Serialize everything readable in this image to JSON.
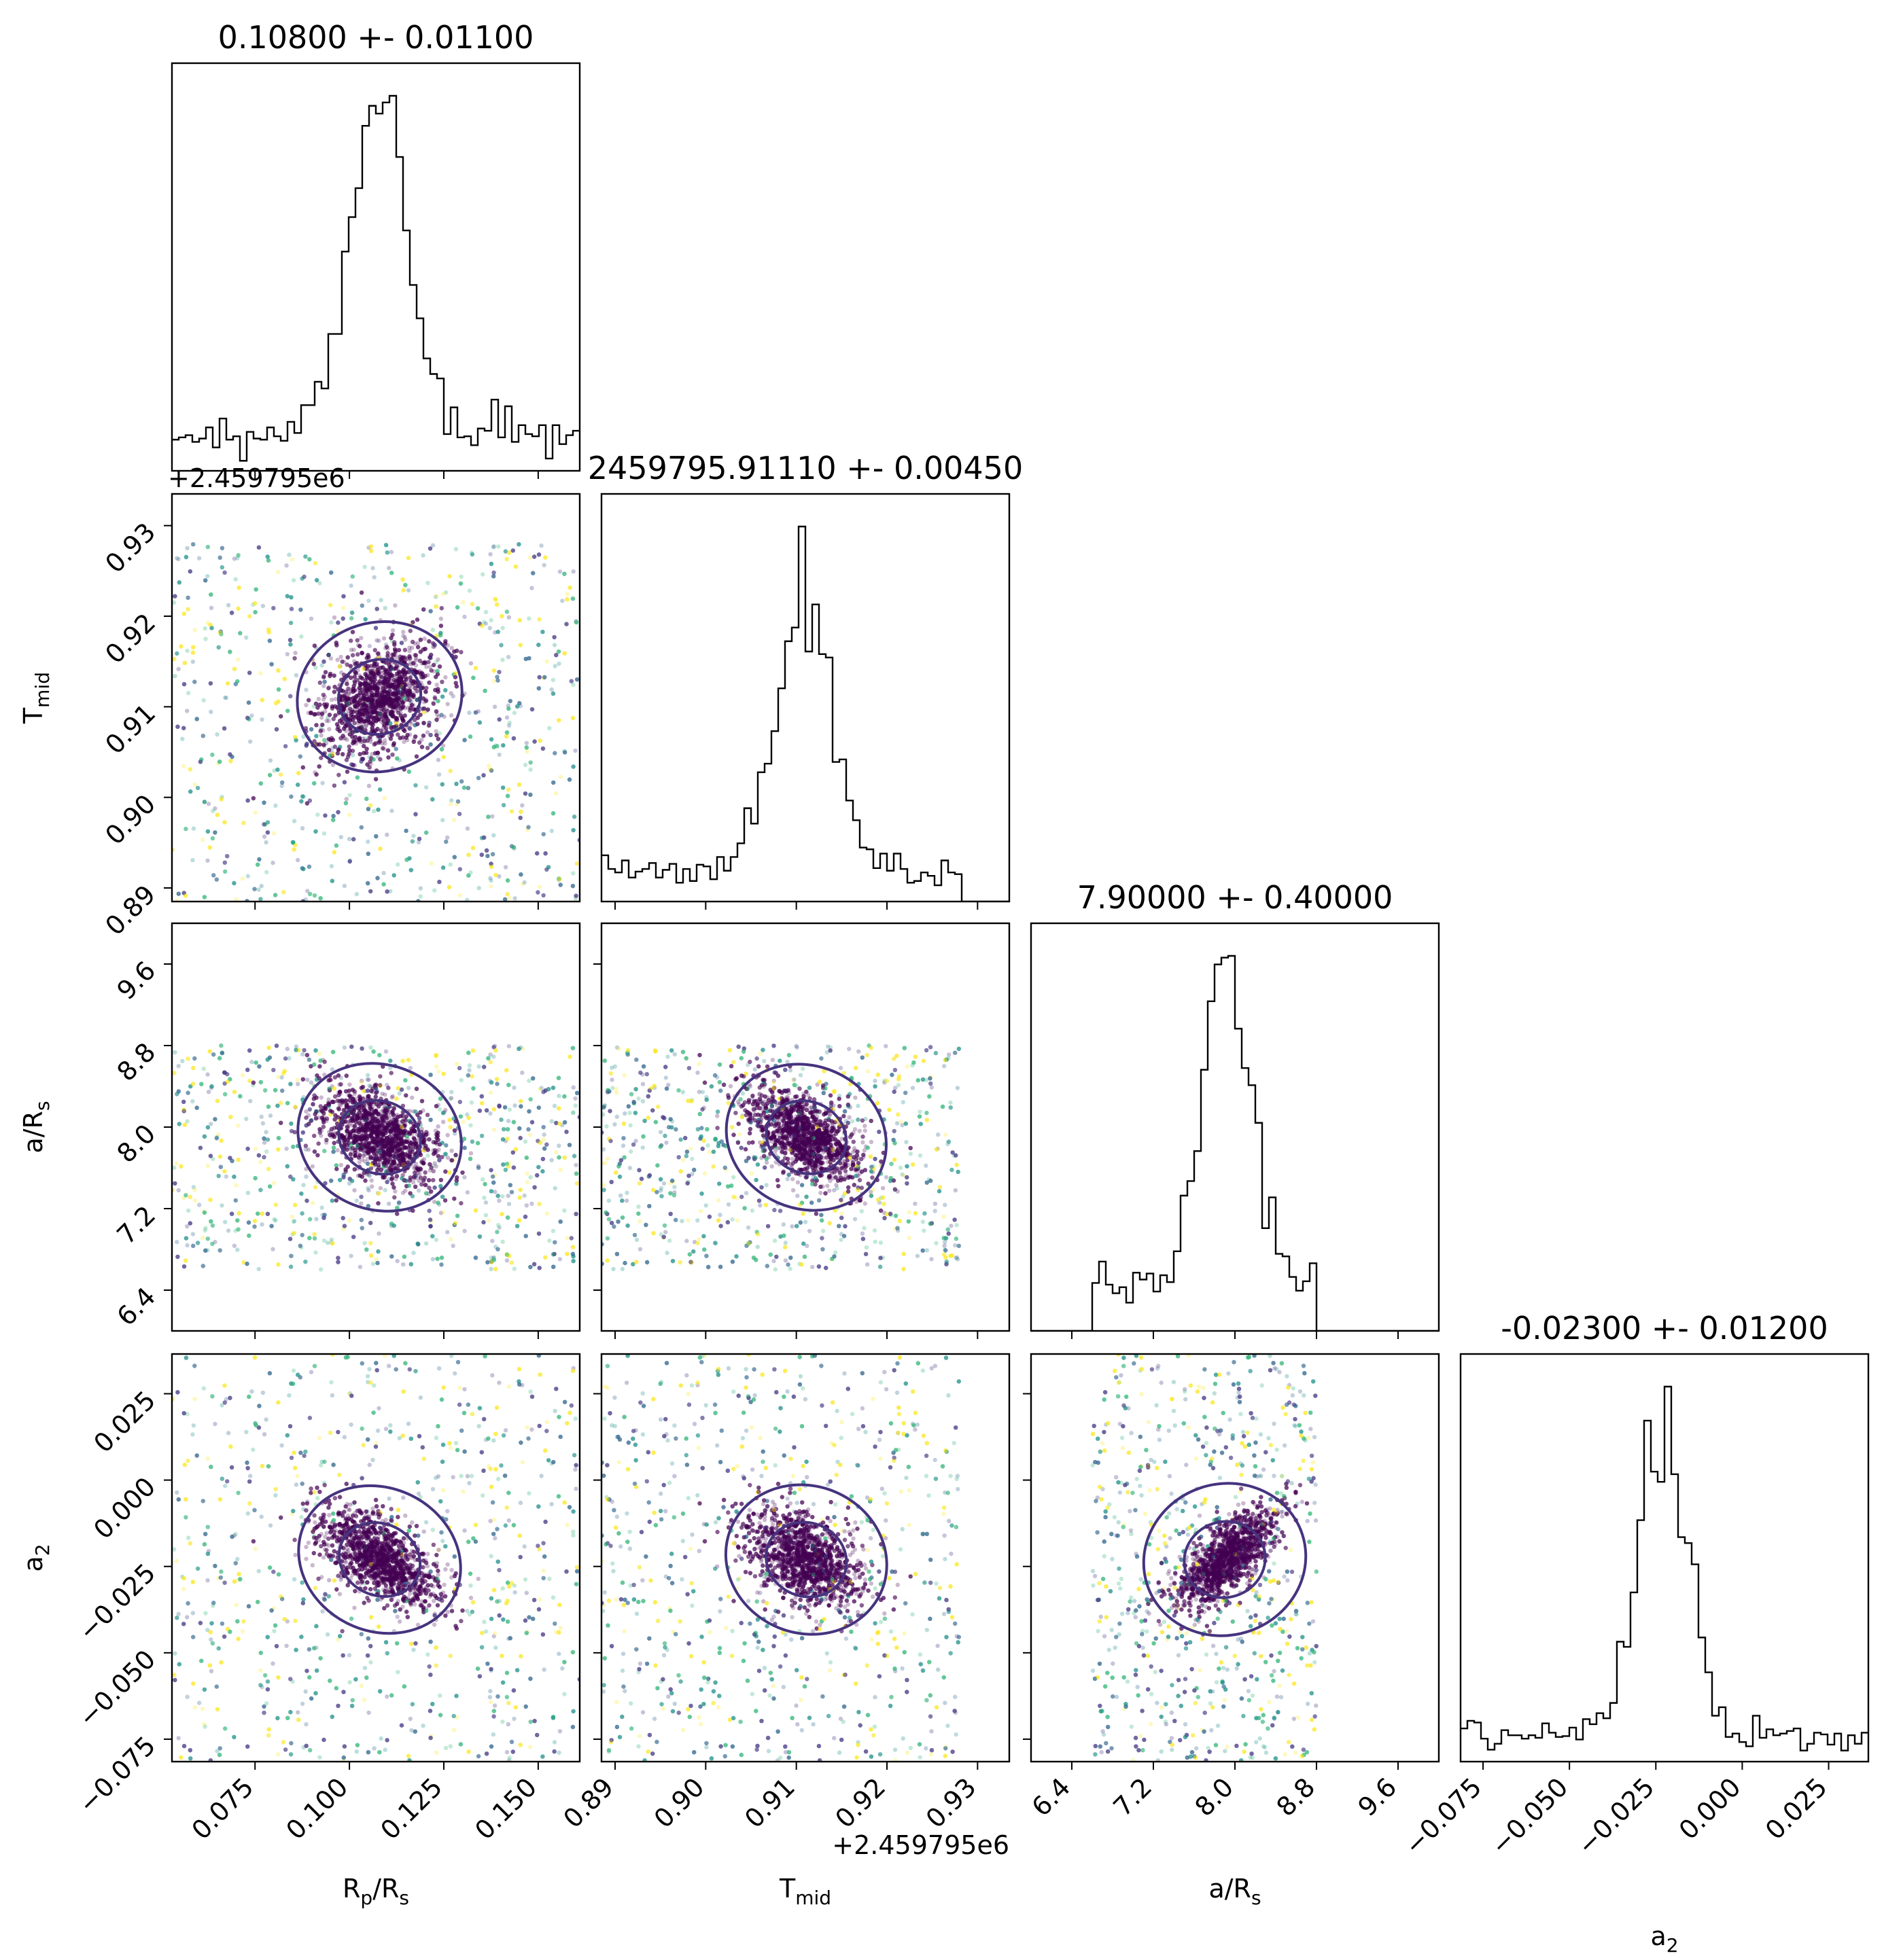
{
  "chart_data": {
    "type": "scatter",
    "kind": "corner plot (posterior histograms + 2D scatter with density contours)",
    "parameters": [
      {
        "key": "rp",
        "label": "R_p/R_s",
        "label_text": "Rp/Rs",
        "label_sub": "p",
        "label_base": "R",
        "label_tail": "/R",
        "label_tail_sub": "s",
        "range": [
          0.053,
          0.161
        ],
        "ticks": [
          0.075,
          0.1,
          0.125,
          0.15
        ],
        "tick_labels": [
          "0.075",
          "0.100",
          "0.125",
          "0.150"
        ],
        "title": "0.10800 +- 0.01100",
        "median": 0.108,
        "sigma": 0.011
      },
      {
        "key": "tmid",
        "label": "T_mid",
        "label_base": "T",
        "label_sub": "mid",
        "range": [
          0.8885,
          0.9335
        ],
        "ticks": [
          0.89,
          0.9,
          0.91,
          0.92,
          0.93
        ],
        "tick_labels": [
          "0.89",
          "0.90",
          "0.91",
          "0.92",
          "0.93"
        ],
        "offset": "+2.459795e6",
        "title": "2459795.91110 +- 0.00450",
        "median": 0.9111,
        "sigma": 0.0045
      },
      {
        "key": "ars",
        "label": "a/R_s",
        "label_base": "a/R",
        "label_sub": "s",
        "range": [
          6.0,
          10.0
        ],
        "ticks": [
          6.4,
          7.2,
          8.0,
          8.8,
          9.6
        ],
        "tick_labels": [
          "6.4",
          "7.2",
          "8.0",
          "8.8",
          "9.6"
        ],
        "title": "7.90000 +- 0.40000",
        "median": 7.9,
        "sigma": 0.4
      },
      {
        "key": "a2",
        "label": "a_2",
        "label_base": "a",
        "label_sub": "2",
        "range": [
          -0.0815,
          0.0365
        ],
        "ticks": [
          -0.075,
          -0.05,
          -0.025,
          0.0,
          0.025
        ],
        "tick_labels": [
          "−0.075",
          "−0.050",
          "−0.025",
          "0.000",
          "0.025"
        ],
        "title": "-0.02300 +- 0.01200",
        "median": -0.023,
        "sigma": 0.012
      }
    ],
    "sample_bounds": {
      "rp": [
        0.053,
        0.161
      ],
      "tmid": [
        0.8885,
        0.928
      ],
      "ars": [
        6.6,
        8.8
      ],
      "a2": [
        -0.0815,
        0.0365
      ]
    },
    "colors": {
      "core": "#440154",
      "contour": "#46337e",
      "tail": [
        "#fde725",
        "#35b779",
        "#21918c",
        "#31688e",
        "#443983"
      ],
      "hist": "#000000"
    },
    "contour_levels": [
      "inner (~39%)",
      "outer (~86%)"
    ]
  }
}
